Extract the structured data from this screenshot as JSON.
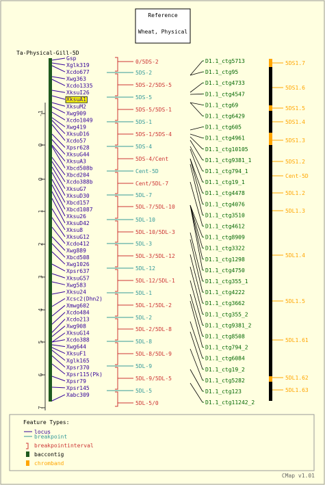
{
  "reference": {
    "line1": "Reference",
    "line2": "Wheat, Physical"
  },
  "map_title": "Ta-Physical-Gill-5D",
  "axis_ticks": [
    "-1",
    "0",
    "0",
    "1",
    "2",
    "3",
    "4",
    "5",
    "6",
    "7"
  ],
  "loci": [
    "Gsp",
    "Xglk319",
    "Xcdo677",
    "Xwg363",
    "Xcdo1335",
    "XksuI26",
    "XksuA1",
    "XksuM2",
    "Xwg909",
    "Xcdo1049",
    "Xwg419",
    "XksuD16",
    "Xcdo57",
    "Xpsr628",
    "XksuG44",
    "XksuA3",
    "Xbcd508b",
    "Xbcd204",
    "Xcdo388b",
    "XksuG7",
    "XksuD30",
    "Xbcd157",
    "Xbcd1087",
    "Xksu26",
    "XksuD42",
    "Xksu8",
    "XksuG12",
    "Xcdo412",
    "Xwg889",
    "Xbcd508",
    "Xwg1026",
    "Xpsr637",
    "XksuG57",
    "Xwg583",
    "Xksu24",
    "Xcsc2(Dhn2)",
    "Xmwg602",
    "Xcdo484",
    "Xcdo213",
    "Xwg908",
    "XksuG14",
    "Xcdo388",
    "Xwg644",
    "XksuF1",
    "Xglk165",
    "Xpsr370",
    "Xpsr115(Pk)",
    "Xpsr79",
    "Xpsr145",
    "Xabc309"
  ],
  "highlighted_locus": "XksuA1",
  "breakpoints": [
    {
      "label": "0/5DS-2",
      "type": "interval"
    },
    {
      "label": "5DS-2",
      "type": "breakpoint"
    },
    {
      "label": "5DS-2/5DS-5",
      "type": "interval"
    },
    {
      "label": "5DS-5",
      "type": "breakpoint"
    },
    {
      "label": "5DS-5/5DS-1",
      "type": "interval"
    },
    {
      "label": "5DS-1",
      "type": "breakpoint"
    },
    {
      "label": "5DS-1/5DS-4",
      "type": "interval"
    },
    {
      "label": "5DS-4",
      "type": "breakpoint"
    },
    {
      "label": "5DS-4/Cent",
      "type": "interval"
    },
    {
      "label": "Cent-5D",
      "type": "breakpoint"
    },
    {
      "label": "Cent/5DL-7",
      "type": "interval"
    },
    {
      "label": "5DL-7",
      "type": "breakpoint"
    },
    {
      "label": "5DL-7/5DL-10",
      "type": "interval"
    },
    {
      "label": "5DL-10",
      "type": "breakpoint"
    },
    {
      "label": "5DL-10/5DL-3",
      "type": "interval"
    },
    {
      "label": "5DL-3",
      "type": "breakpoint"
    },
    {
      "label": "5DL-3/5DL-12",
      "type": "interval"
    },
    {
      "label": "5DL-12",
      "type": "breakpoint"
    },
    {
      "label": "5DL-12/5DL-1",
      "type": "interval"
    },
    {
      "label": "5DL-1",
      "type": "breakpoint"
    },
    {
      "label": "5DL-1/5DL-2",
      "type": "interval"
    },
    {
      "label": "5DL-2",
      "type": "breakpoint"
    },
    {
      "label": "5DL-2/5DL-8",
      "type": "interval"
    },
    {
      "label": "5DL-8",
      "type": "breakpoint"
    },
    {
      "label": "5DL-8/5DL-9",
      "type": "interval"
    },
    {
      "label": "5DL-9",
      "type": "breakpoint"
    },
    {
      "label": "5DL-9/5DL-5",
      "type": "interval"
    },
    {
      "label": "5DL-5",
      "type": "breakpoint"
    },
    {
      "label": "5DL-5/0",
      "type": "interval"
    }
  ],
  "contigs": [
    "D1.1_ctg5713",
    "D1.1_ctg95",
    "D1.1_ctg4733",
    "D1.1_ctg4547",
    "D1.1_ctg69",
    "D1.1_ctg6429",
    "D1.1_ctg605",
    "D1.1_ctg4961",
    "D1.1_ctg10105",
    "D1.1_ctg9381_1",
    "D1.1_ctg794_1",
    "D1.1_ctg19_1",
    "D1.1_ctg4478",
    "D1.1_ctg4076",
    "D1.1_ctg3510",
    "D1.1_ctg4612",
    "D1.1_ctg8909",
    "D1.1_ctg3322",
    "D1.1_ctg1298",
    "D1.1_ctg4750",
    "D1.1_ctg355_1",
    "D1.1_ctg4222",
    "D1.1_ctg3662",
    "D1.1_ctg355_2",
    "D1.1_ctg9381_2",
    "D1.1_ctg8508",
    "D1.1_ctg794_2",
    "D1.1_ctg6084",
    "D1.1_ctg19_2",
    "D1.1_ctg5282",
    "D1.1_ctg123",
    "D1.1_ctg11242_2"
  ],
  "chrombands": [
    "5DS1.7",
    "5DS1.6",
    "5DS1.5",
    "5DS1.4",
    "5DS1.3",
    "5DS1.2",
    "Cent-5D",
    "5DL1.2",
    "5DL1.3",
    "5DL1.4",
    "5DL1.5",
    "5DL1.61",
    "5DL1.62",
    "5DL1.63"
  ],
  "legend": {
    "title": "Feature Types:",
    "items": [
      {
        "label": "locus",
        "kind": "line",
        "color": "#330099"
      },
      {
        "label": "breakpoint",
        "kind": "line",
        "color": "#339999"
      },
      {
        "label": "breakpointinterval",
        "kind": "bracket",
        "color": "#CC3333"
      },
      {
        "label": "baccontig",
        "kind": "box",
        "color": "#1E5A1E"
      },
      {
        "label": "chromband",
        "kind": "box",
        "color": "#FFA500"
      }
    ]
  },
  "footer": "CMap v1.01",
  "colors": {
    "locus": "#330099",
    "breakpoint": "#339999",
    "interval": "#CC3333",
    "contig": "#006600",
    "contig_bar": "#1E5A1E",
    "chromband": "#FFA500",
    "highlight": "#FFFF00"
  }
}
